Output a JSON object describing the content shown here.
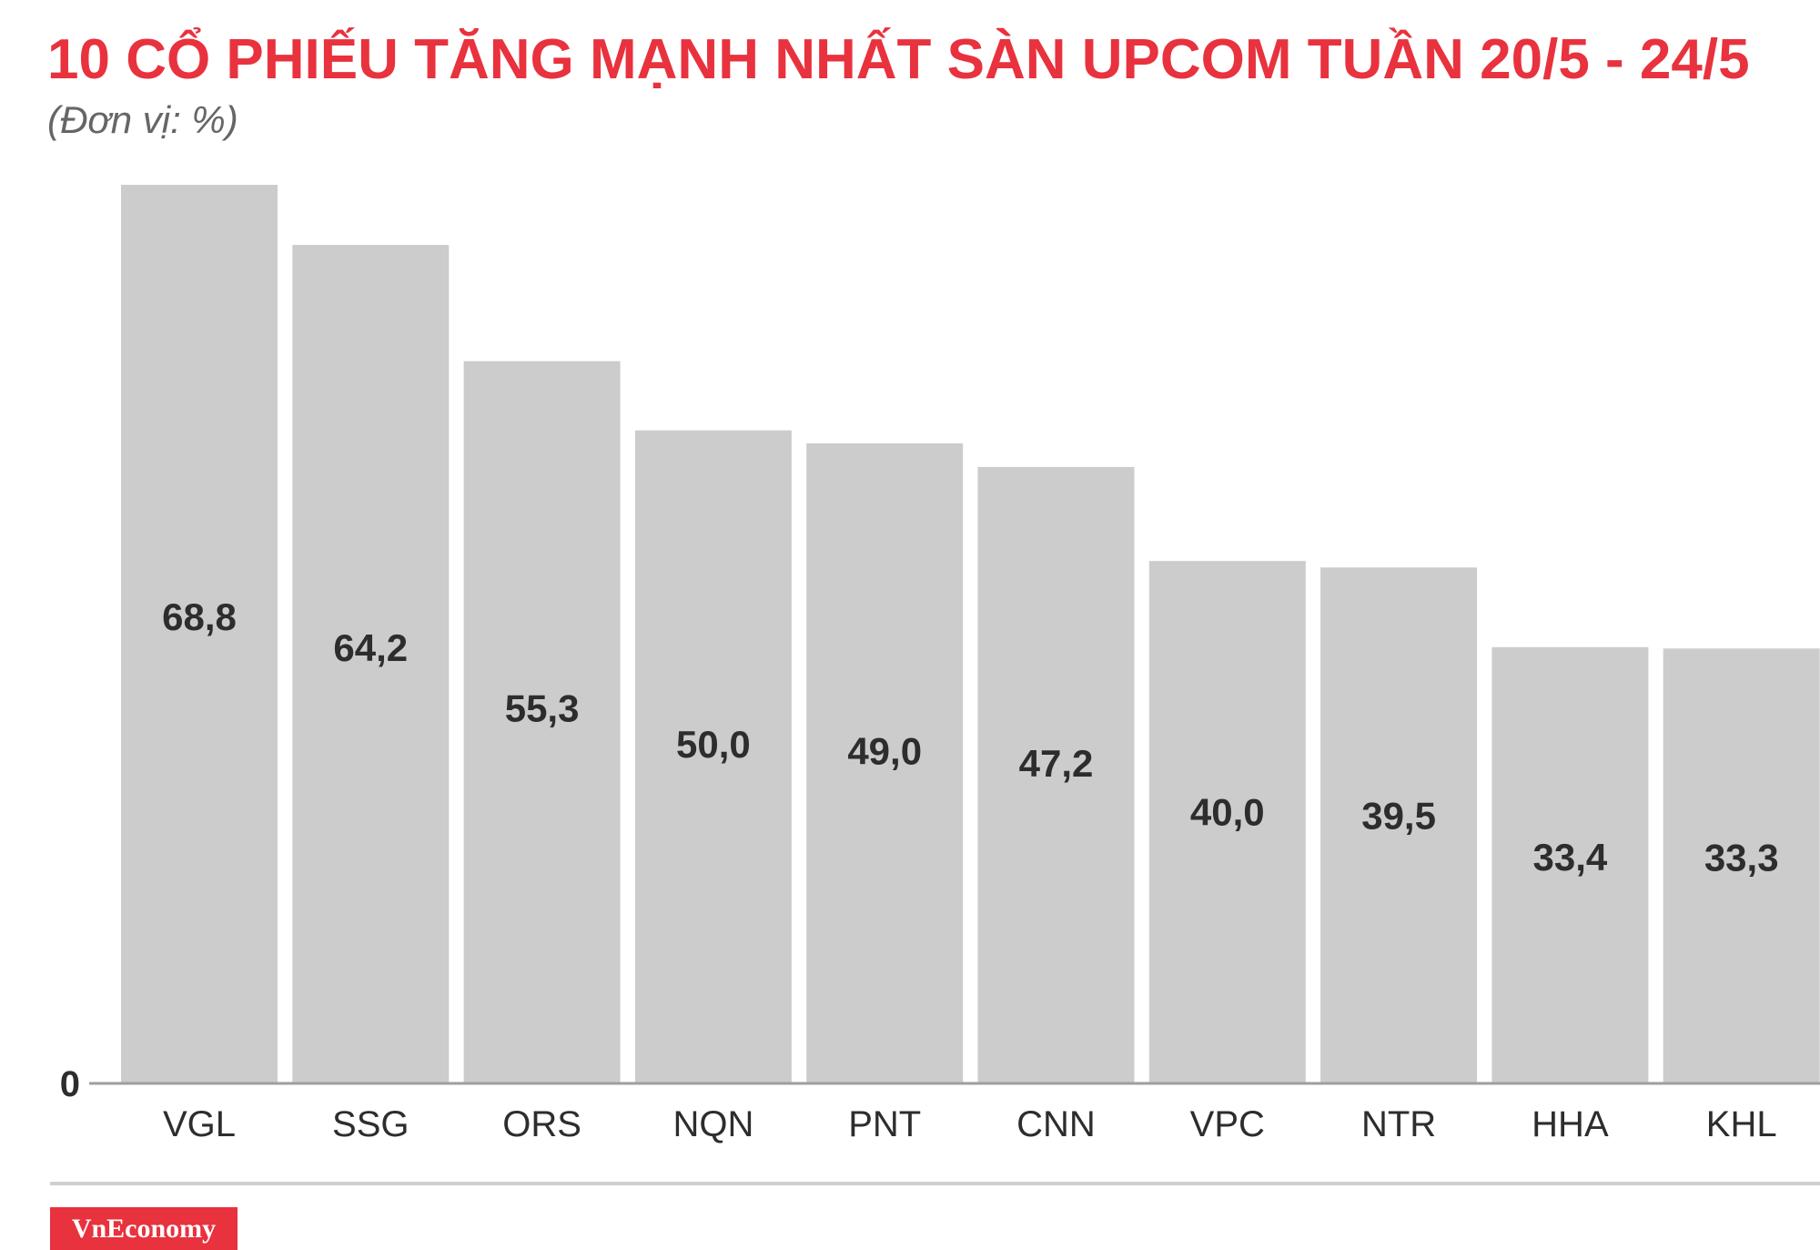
{
  "chart_data": {
    "type": "bar",
    "title": "10 CỔ PHIẾU TĂNG MẠNH NHẤT SÀN UPCOM TUẦN 20/5 - 24/5",
    "subtitle": "(Đơn vị: %)",
    "categories": [
      "VGL",
      "SSG",
      "ORS",
      "NQN",
      "PNT",
      "CNN",
      "VPC",
      "NTR",
      "HHA",
      "KHL"
    ],
    "values": [
      68.8,
      64.2,
      55.3,
      50.0,
      49.0,
      47.2,
      40.0,
      39.5,
      33.4,
      33.3
    ],
    "value_labels": [
      "68,8",
      "64,2",
      "55,3",
      "50,0",
      "49,0",
      "47,2",
      "40,0",
      "39,5",
      "33,4",
      "33,3"
    ],
    "y_tick_label": "0",
    "ylim": [
      0,
      68.8
    ],
    "grid": false,
    "legend": "none",
    "bar_color": "#cdcccd",
    "title_color": "#e8323e"
  },
  "footer": {
    "brand": "VnEconomy",
    "brand_color": "#e8323e"
  }
}
